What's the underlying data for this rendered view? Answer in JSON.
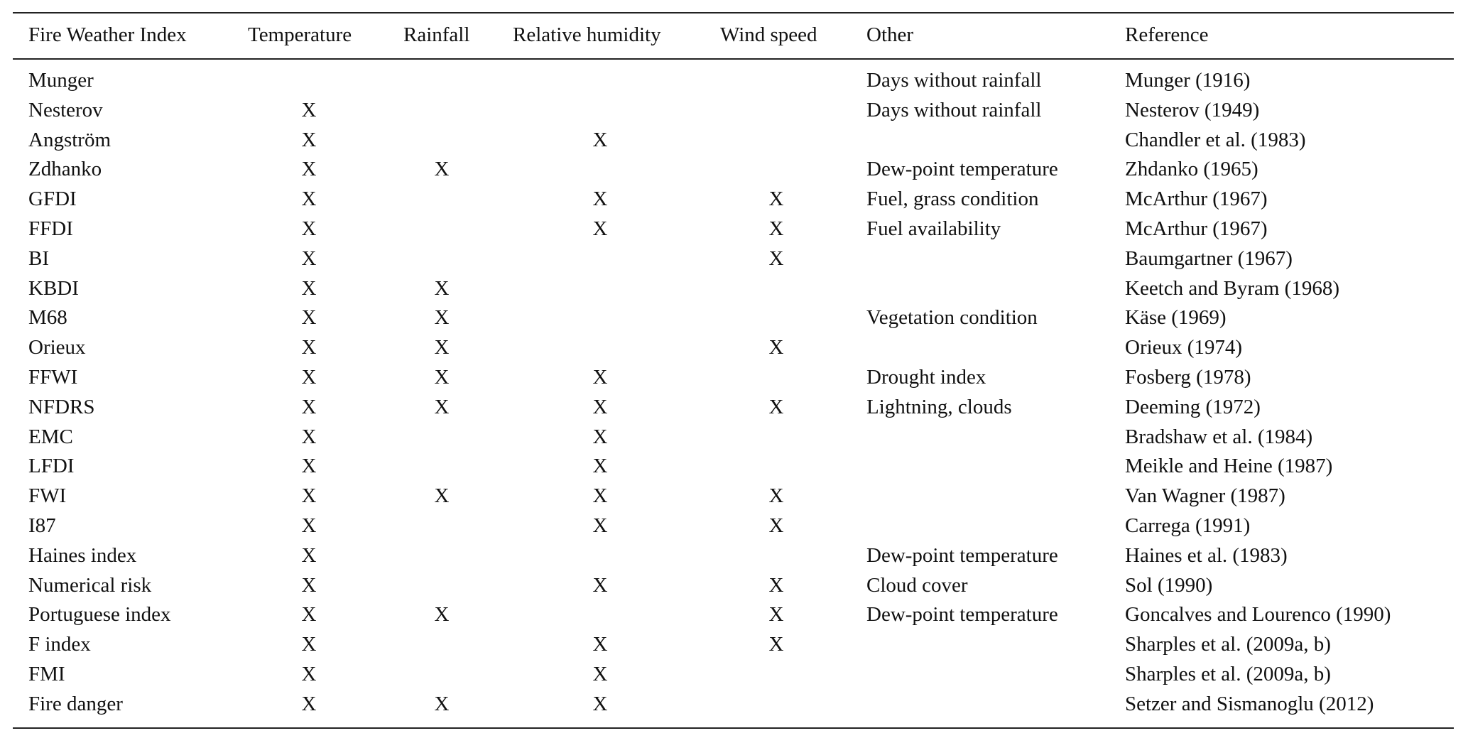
{
  "table": {
    "columns": [
      "Fire Weather Index",
      "Temperature",
      "Rainfall",
      "Relative humidity",
      "Wind speed",
      "Other",
      "Reference"
    ],
    "mark": "X",
    "rows": [
      [
        "Munger",
        "",
        "",
        "",
        "",
        "Days without rainfall",
        "Munger (1916)"
      ],
      [
        "Nesterov",
        "X",
        "",
        "",
        "",
        "Days without rainfall",
        "Nesterov (1949)"
      ],
      [
        "Angström",
        "X",
        "",
        "X",
        "",
        "",
        "Chandler et al. (1983)"
      ],
      [
        "Zdhanko",
        "X",
        "X",
        "",
        "",
        "Dew-point temperature",
        "Zhdanko (1965)"
      ],
      [
        "GFDI",
        "X",
        "",
        "X",
        "X",
        "Fuel, grass condition",
        "McArthur (1967)"
      ],
      [
        "FFDI",
        "X",
        "",
        "X",
        "X",
        "Fuel availability",
        "McArthur (1967)"
      ],
      [
        "BI",
        "X",
        "",
        "",
        "X",
        "",
        "Baumgartner (1967)"
      ],
      [
        "KBDI",
        "X",
        "X",
        "",
        "",
        "",
        "Keetch and Byram (1968)"
      ],
      [
        "M68",
        "X",
        "X",
        "",
        "",
        "Vegetation condition",
        "Käse (1969)"
      ],
      [
        "Orieux",
        "X",
        "X",
        "",
        "X",
        "",
        "Orieux (1974)"
      ],
      [
        "FFWI",
        "X",
        "X",
        "X",
        "",
        "Drought index",
        "Fosberg (1978)"
      ],
      [
        "NFDRS",
        "X",
        "X",
        "X",
        "X",
        "Lightning, clouds",
        "Deeming (1972)"
      ],
      [
        "EMC",
        "X",
        "",
        "X",
        "",
        "",
        "Bradshaw et al. (1984)"
      ],
      [
        "LFDI",
        "X",
        "",
        "X",
        "",
        "",
        "Meikle and Heine (1987)"
      ],
      [
        "FWI",
        "X",
        "X",
        "X",
        "X",
        "",
        "Van Wagner (1987)"
      ],
      [
        "I87",
        "X",
        "",
        "X",
        "X",
        "",
        "Carrega (1991)"
      ],
      [
        "Haines index",
        "X",
        "",
        "",
        "",
        "Dew-point temperature",
        "Haines et al. (1983)"
      ],
      [
        "Numerical risk",
        "X",
        "",
        "X",
        "X",
        "Cloud cover",
        "Sol (1990)"
      ],
      [
        "Portuguese index",
        "X",
        "X",
        "",
        "X",
        "Dew-point temperature",
        "Goncalves and Lourenco (1990)"
      ],
      [
        "F index",
        "X",
        "",
        "X",
        "X",
        "",
        "Sharples et al. (2009a, b)"
      ],
      [
        "FMI",
        "X",
        "",
        "X",
        "",
        "",
        "Sharples et al. (2009a, b)"
      ],
      [
        "Fire danger",
        "X",
        "X",
        "X",
        "",
        "",
        "Setzer and Sismanoglu (2012)"
      ]
    ]
  }
}
